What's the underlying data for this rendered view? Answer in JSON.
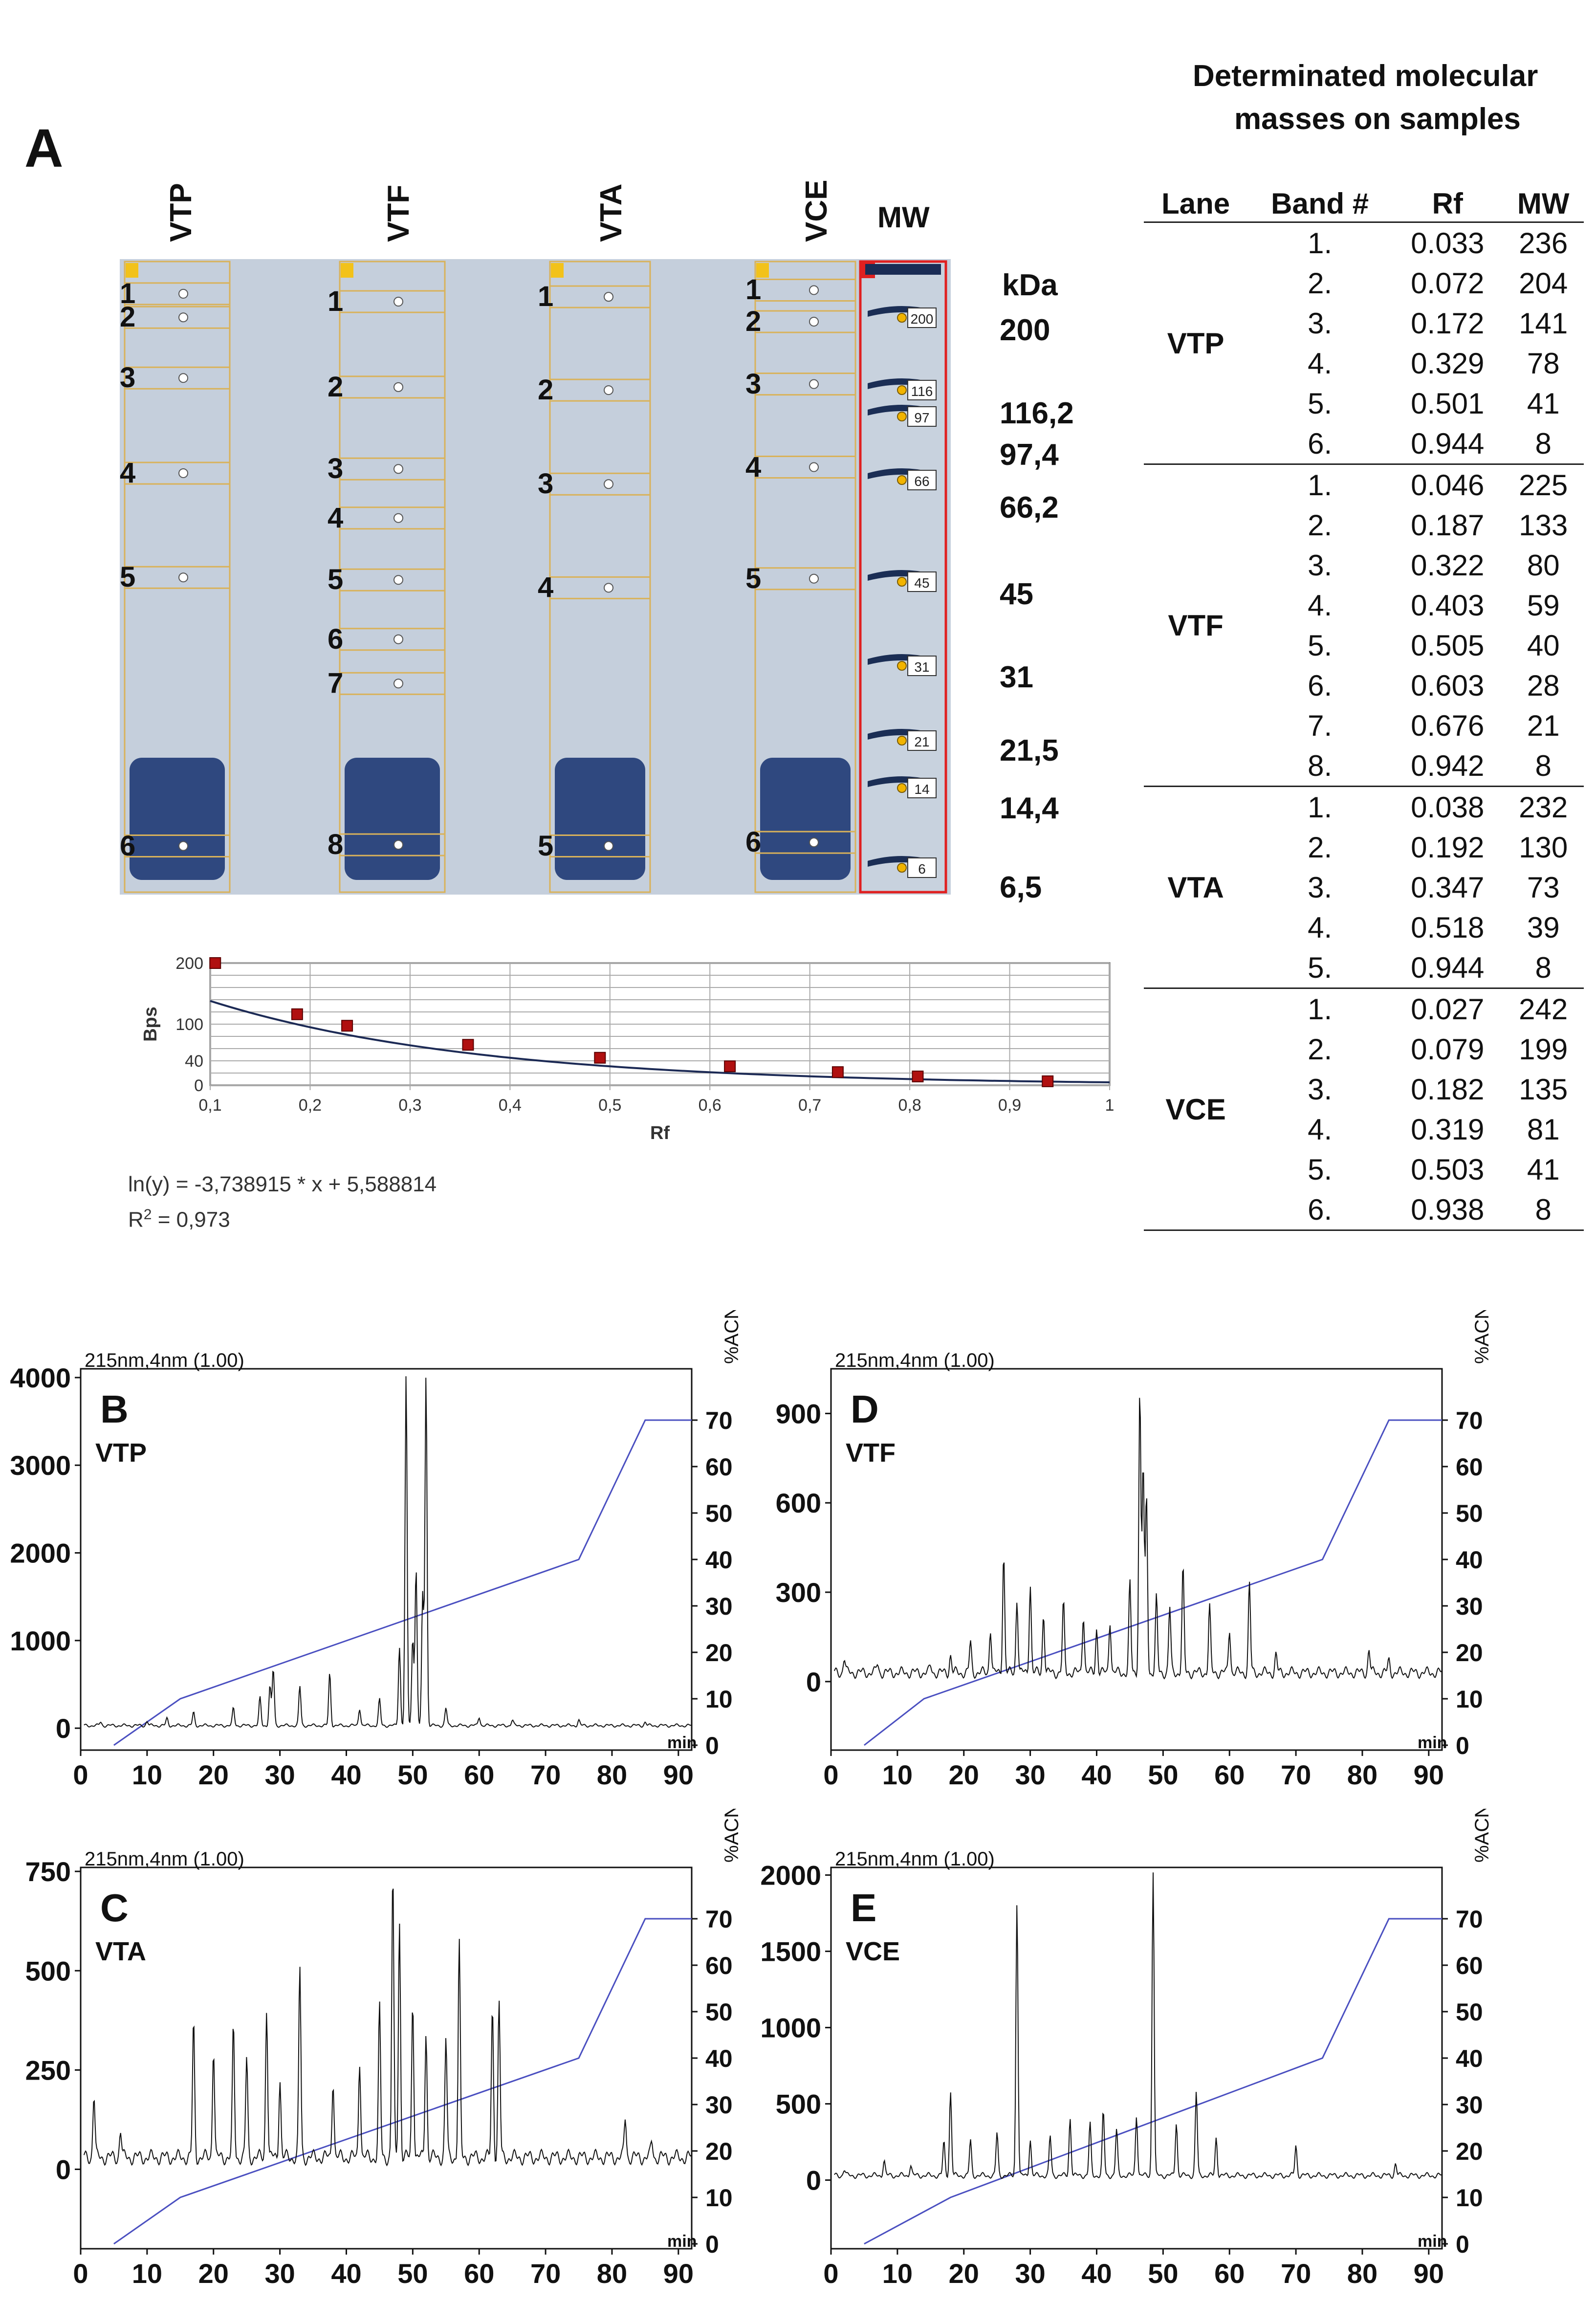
{
  "panel_a": {
    "letter": "A",
    "table_title_1": "Determinated molecular",
    "table_title_2": "masses on samples",
    "lanes": [
      "VTP",
      "VTF",
      "VTA",
      "VCE"
    ],
    "mw_lane": "MW",
    "kda_unit": "kDa",
    "kda_markers": [
      "200",
      "116,2",
      "97,4",
      "66,2",
      "45",
      "31",
      "21,5",
      "14,4",
      "6,5"
    ],
    "ladder_tags": [
      "200",
      "116",
      "97",
      "66",
      "45",
      "31",
      "21",
      "14",
      "6"
    ],
    "lane_numbers": {
      "VTP": [
        "1",
        "2",
        "3",
        "4",
        "5",
        "6"
      ],
      "VTF": [
        "1",
        "2",
        "3",
        "4",
        "5",
        "6",
        "7",
        "8"
      ],
      "VTA": [
        "1",
        "2",
        "3",
        "4",
        "5"
      ],
      "VCE": [
        "1",
        "2",
        "3",
        "4",
        "5",
        "6"
      ]
    },
    "table": {
      "headers": [
        "Lane",
        "Band #",
        "Rf",
        "MW"
      ],
      "groups": [
        {
          "lane": "VTP",
          "rows": [
            [
              "1.",
              "0.033",
              "236"
            ],
            [
              "2.",
              "0.072",
              "204"
            ],
            [
              "3.",
              "0.172",
              "141"
            ],
            [
              "4.",
              "0.329",
              "78"
            ],
            [
              "5.",
              "0.501",
              "41"
            ],
            [
              "6.",
              "0.944",
              "8"
            ]
          ]
        },
        {
          "lane": "VTF",
          "rows": [
            [
              "1.",
              "0.046",
              "225"
            ],
            [
              "2.",
              "0.187",
              "133"
            ],
            [
              "3.",
              "0.322",
              "80"
            ],
            [
              "4.",
              "0.403",
              "59"
            ],
            [
              "5.",
              "0.505",
              "40"
            ],
            [
              "6.",
              "0.603",
              "28"
            ],
            [
              "7.",
              "0.676",
              "21"
            ],
            [
              "8.",
              "0.942",
              "8"
            ]
          ]
        },
        {
          "lane": "VTA",
          "rows": [
            [
              "1.",
              "0.038",
              "232"
            ],
            [
              "2.",
              "0.192",
              "130"
            ],
            [
              "3.",
              "0.347",
              "73"
            ],
            [
              "4.",
              "0.518",
              "39"
            ],
            [
              "5.",
              "0.944",
              "8"
            ]
          ]
        },
        {
          "lane": "VCE",
          "rows": [
            [
              "1.",
              "0.027",
              "242"
            ],
            [
              "2.",
              "0.079",
              "199"
            ],
            [
              "3.",
              "0.182",
              "135"
            ],
            [
              "4.",
              "0.319",
              "81"
            ],
            [
              "5.",
              "0.503",
              "41"
            ],
            [
              "6.",
              "0.938",
              "8"
            ]
          ]
        }
      ]
    },
    "equation": "ln(y) = -3,738915 * x + 5,588814",
    "r2_prefix": "R",
    "r2_sup": "2",
    "r2_suffix": " = 0,973"
  },
  "chart_data": [
    {
      "type": "scatter",
      "title": "",
      "xlabel": "Rf",
      "ylabel": "Bps",
      "xlim": [
        0.1,
        1
      ],
      "ylim": [
        0,
        200
      ],
      "x_ticks": [
        "0,1",
        "0,2",
        "0,3",
        "0,4",
        "0,5",
        "0,6",
        "0,7",
        "0,8",
        "0,9",
        "1"
      ],
      "y_ticks": [
        "0",
        "40",
        "100",
        "200"
      ],
      "grid": true,
      "points": {
        "x": [
          0.105,
          0.187,
          0.237,
          0.358,
          0.49,
          0.62,
          0.728,
          0.808,
          0.938
        ],
        "y": [
          200,
          116.2,
          97.4,
          66.2,
          45,
          31,
          21.5,
          14.4,
          6.5
        ]
      },
      "fit": {
        "slope": -3.738915,
        "intercept": 5.588814
      }
    },
    {
      "type": "line",
      "panel": "B",
      "sample": "VTP",
      "title": "215nm,4nm (1.00)",
      "xlabel": "min",
      "ylabel_right": "%ACN",
      "xlim": [
        0,
        92
      ],
      "ylim": [
        -250,
        4100
      ],
      "x_ticks": [
        "0",
        "10",
        "20",
        "30",
        "40",
        "50",
        "60",
        "70",
        "80",
        "90"
      ],
      "y_ticks": [
        "0",
        "1000",
        "2000",
        "3000",
        "4000"
      ],
      "y2_ticks": [
        "0",
        "10",
        "20",
        "30",
        "40",
        "50",
        "60",
        "70"
      ],
      "gradient": {
        "x": [
          5,
          15,
          75,
          85,
          92
        ],
        "y": [
          0,
          10,
          40,
          70,
          70
        ]
      },
      "peaks": {
        "x": [
          3,
          10,
          13,
          17,
          23,
          27,
          28.5,
          29,
          33,
          37.5,
          42,
          45,
          48,
          49,
          50,
          50.5,
          51.5,
          52,
          55,
          60,
          65,
          75,
          85
        ],
        "y": [
          40,
          50,
          80,
          150,
          200,
          320,
          450,
          650,
          450,
          600,
          200,
          300,
          900,
          4000,
          1000,
          1800,
          1500,
          4000,
          200,
          100,
          60,
          60,
          40
        ]
      }
    },
    {
      "type": "line",
      "panel": "C",
      "sample": "VTA",
      "title": "215nm,4nm (1.00)",
      "xlabel": "min",
      "ylabel_right": "%ACN",
      "xlim": [
        0,
        92
      ],
      "ylim": [
        -200,
        760
      ],
      "x_ticks": [
        "0",
        "10",
        "20",
        "30",
        "40",
        "50",
        "60",
        "70",
        "80",
        "90"
      ],
      "y_ticks": [
        "0",
        "250",
        "500",
        "750"
      ],
      "y2_ticks": [
        "0",
        "10",
        "20",
        "30",
        "40",
        "50",
        "60",
        "70"
      ],
      "gradient": {
        "x": [
          5,
          15,
          75,
          85,
          92
        ],
        "y": [
          0,
          10,
          40,
          70,
          70
        ]
      },
      "peaks": {
        "x": [
          2,
          6,
          17,
          20,
          23,
          25,
          28,
          30,
          33,
          38,
          42,
          45,
          47,
          48,
          50,
          52,
          55,
          57,
          62,
          63,
          82,
          86
        ],
        "y": [
          160,
          70,
          340,
          280,
          330,
          250,
          380,
          200,
          480,
          200,
          250,
          380,
          720,
          600,
          400,
          320,
          300,
          540,
          380,
          390,
          100,
          40
        ]
      }
    },
    {
      "type": "line",
      "panel": "D",
      "sample": "VTF",
      "title": "215nm,4nm (1.00)",
      "xlabel": "min",
      "ylabel_right": "%ACN",
      "xlim": [
        0,
        92
      ],
      "ylim": [
        -230,
        1050
      ],
      "x_ticks": [
        "0",
        "10",
        "20",
        "30",
        "40",
        "50",
        "60",
        "70",
        "80",
        "90"
      ],
      "y_ticks": [
        "0",
        "300",
        "600",
        "900"
      ],
      "y2_ticks": [
        "0",
        "10",
        "20",
        "30",
        "40",
        "50",
        "60",
        "70"
      ],
      "gradient": {
        "x": [
          5,
          14,
          74,
          84,
          92
        ],
        "y": [
          0,
          10,
          40,
          70,
          70
        ]
      },
      "peaks": {
        "x": [
          2,
          7,
          15,
          18,
          21,
          24,
          26,
          28,
          30,
          32,
          35,
          38,
          40,
          42,
          45,
          46.5,
          47,
          47.5,
          49,
          51,
          53,
          57,
          60,
          63,
          67,
          81,
          84
        ],
        "y": [
          50,
          30,
          20,
          60,
          100,
          150,
          400,
          250,
          300,
          200,
          230,
          200,
          150,
          180,
          300,
          950,
          700,
          600,
          250,
          220,
          350,
          220,
          150,
          300,
          60,
          80,
          40
        ]
      }
    },
    {
      "type": "line",
      "panel": "E",
      "sample": "VCE",
      "title": "215nm,4nm (1.00)",
      "xlabel": "min",
      "ylabel_right": "%ACN",
      "xlim": [
        0,
        92
      ],
      "ylim": [
        -450,
        2050
      ],
      "x_ticks": [
        "0",
        "10",
        "20",
        "30",
        "40",
        "50",
        "60",
        "70",
        "80",
        "90"
      ],
      "y_ticks": [
        "0",
        "500",
        "1000",
        "1500",
        "2000"
      ],
      "y2_ticks": [
        "0",
        "10",
        "20",
        "30",
        "40",
        "50",
        "60",
        "70"
      ],
      "gradient": {
        "x": [
          5,
          18,
          74,
          84,
          92
        ],
        "y": [
          0,
          10,
          40,
          70,
          70
        ]
      },
      "peaks": {
        "x": [
          2,
          8,
          12,
          17,
          18,
          21,
          25,
          28,
          30,
          33,
          36,
          39,
          41,
          43,
          46,
          48.5,
          52,
          55,
          58,
          70,
          85
        ],
        "y": [
          40,
          100,
          70,
          220,
          550,
          230,
          280,
          1800,
          240,
          260,
          380,
          340,
          420,
          300,
          400,
          2000,
          350,
          550,
          250,
          200,
          80
        ]
      }
    }
  ],
  "panels_bcde": {
    "detector": "215nm,4nm (1.00)",
    "min_unit": "min",
    "acn_unit": "%ACN",
    "labels": [
      {
        "letter": "B",
        "sample": "VTP"
      },
      {
        "letter": "C",
        "sample": "VTA"
      },
      {
        "letter": "D",
        "sample": "VTF"
      },
      {
        "letter": "E",
        "sample": "VCE"
      }
    ]
  }
}
